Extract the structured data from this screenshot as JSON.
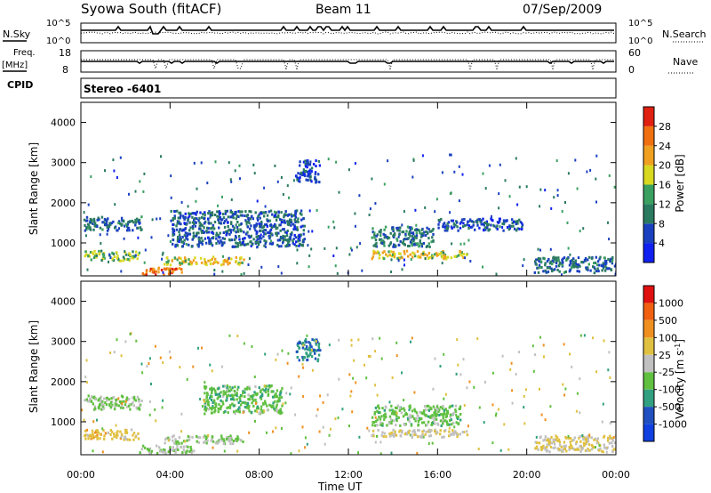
{
  "header": {
    "station": "Syowa South (fitACF)",
    "beam": "Beam 11",
    "date": "07/Sep/2009"
  },
  "strip_labels": {
    "nsky": "N.Sky",
    "nsky_top": "10^5",
    "nsky_bottom": "10^0",
    "nsearch": "N.Search",
    "nsearch_top": "10^5",
    "nsearch_bottom": "10^0",
    "freq": "Freq.",
    "freq_unit": "[MHz]",
    "freq_top": "18",
    "freq_bottom": "8",
    "nave": "Nave",
    "nave_top": "60",
    "nave_bottom": "0",
    "cpid": "CPID",
    "cpid_value": "Stereo -6401"
  },
  "colors": {
    "power_scale": [
      "#1020f0",
      "#1a40c0",
      "#2a7a60",
      "#3aa060",
      "#d8d820",
      "#f0a020",
      "#f07010",
      "#e02010"
    ],
    "velocity_scale": [
      "#e01010",
      "#f06010",
      "#f09020",
      "#e0c040",
      "#c0c0c0",
      "#60c040",
      "#30a080",
      "#2050c0",
      "#1040e0"
    ]
  },
  "chart_data": [
    {
      "type": "heatmap",
      "name": "power",
      "ylabel": "Slant Range [km]",
      "yticks": [
        "1000",
        "2000",
        "3000",
        "4000"
      ],
      "ylim": [
        180,
        4500
      ],
      "xlim": [
        0,
        24
      ],
      "xtick_labels": [
        "00:00",
        "04:00",
        "08:00",
        "12:00",
        "16:00",
        "20:00",
        "00:00"
      ],
      "colorbar_label": "Power [dB]",
      "colorbar_ticks": [
        "4",
        "8",
        "12",
        "16",
        "20",
        "24",
        "28"
      ],
      "colorbar_range": [
        0,
        30
      ],
      "regions": [
        {
          "t0": 0.1,
          "t1": 2.7,
          "r0": 1300,
          "r1": 1650,
          "level": 8
        },
        {
          "t0": 0.1,
          "t1": 2.6,
          "r0": 550,
          "r1": 800,
          "level": 14
        },
        {
          "t0": 2.6,
          "t1": 4.6,
          "r0": 200,
          "r1": 380,
          "level": 24
        },
        {
          "t0": 3.7,
          "t1": 7.3,
          "r0": 450,
          "r1": 650,
          "level": 18
        },
        {
          "t0": 4.0,
          "t1": 10.0,
          "r0": 900,
          "r1": 1800,
          "level": 7
        },
        {
          "t0": 9.6,
          "t1": 10.7,
          "r0": 2500,
          "r1": 3050,
          "level": 5
        },
        {
          "t0": 13.0,
          "t1": 17.3,
          "r0": 600,
          "r1": 800,
          "level": 18
        },
        {
          "t0": 13.0,
          "t1": 15.8,
          "r0": 900,
          "r1": 1400,
          "level": 9
        },
        {
          "t0": 16.0,
          "t1": 19.8,
          "r0": 1300,
          "r1": 1600,
          "level": 6
        },
        {
          "t0": 20.3,
          "t1": 24.0,
          "r0": 250,
          "r1": 650,
          "level": 8
        }
      ]
    },
    {
      "type": "heatmap",
      "name": "velocity",
      "ylabel": "Slant Range [km]",
      "yticks": [
        "1000",
        "2000",
        "3000",
        "4000"
      ],
      "ylim": [
        180,
        4500
      ],
      "xlim": [
        0,
        24
      ],
      "xtick_labels": [
        "00:00",
        "04:00",
        "08:00",
        "12:00",
        "16:00",
        "20:00",
        "00:00"
      ],
      "xlabel": "Time UT",
      "colorbar_label": "Velocity [m s^-1]",
      "colorbar_ticks": [
        "1000",
        "500",
        "100",
        "25",
        "-25",
        "-100",
        "-500",
        "-1000"
      ],
      "colorbar_range": [
        -1200,
        1200
      ],
      "regions": [
        {
          "t0": 0.1,
          "t1": 2.7,
          "r0": 1300,
          "r1": 1650,
          "level": -200
        },
        {
          "t0": 0.1,
          "t1": 2.6,
          "r0": 550,
          "r1": 800,
          "level": 300
        },
        {
          "t0": 2.6,
          "t1": 5.0,
          "r0": 200,
          "r1": 400,
          "level": -120
        },
        {
          "t0": 3.7,
          "t1": 7.3,
          "r0": 450,
          "r1": 650,
          "level": -150
        },
        {
          "t0": 5.5,
          "t1": 9.0,
          "r0": 1200,
          "r1": 1900,
          "level": -300
        },
        {
          "t0": 9.6,
          "t1": 10.7,
          "r0": 2500,
          "r1": 3050,
          "level": -600
        },
        {
          "t0": 13.0,
          "t1": 17.3,
          "r0": 600,
          "r1": 800,
          "level": 60
        },
        {
          "t0": 13.0,
          "t1": 17.0,
          "r0": 900,
          "r1": 1400,
          "level": -250
        },
        {
          "t0": 20.3,
          "t1": 24.0,
          "r0": 250,
          "r1": 650,
          "level": 150
        }
      ]
    }
  ]
}
